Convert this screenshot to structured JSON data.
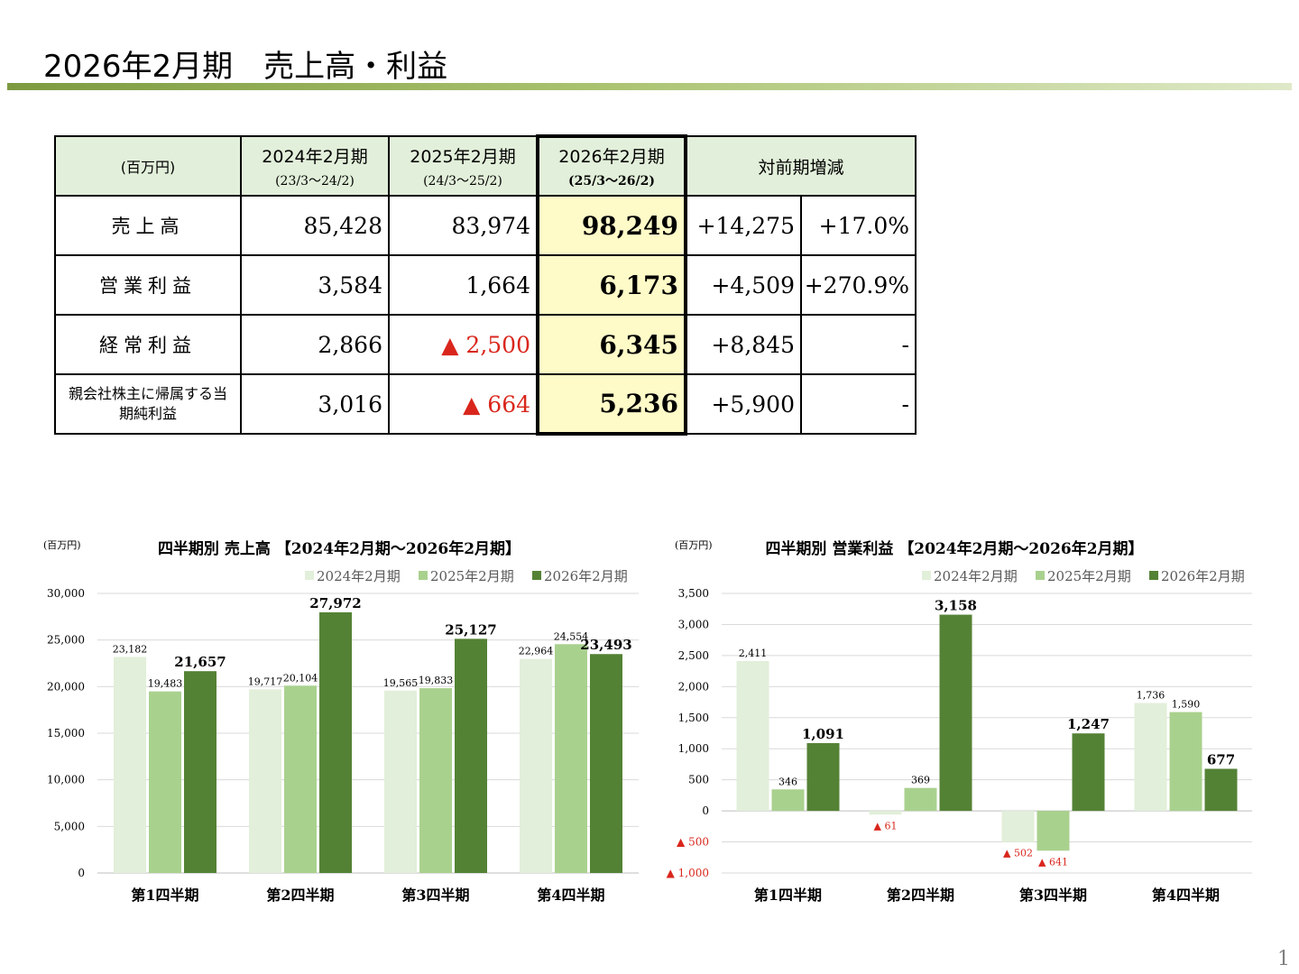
{
  "slide": {
    "title": "2026年2月期　売上高・利益",
    "page_number": "1"
  },
  "summary_table": {
    "unit_label": "(百万円)",
    "columns": [
      {
        "label": "2024年2月期",
        "period": "(23/3～24/2)"
      },
      {
        "label": "2025年2月期",
        "period": "(24/3～25/2)"
      },
      {
        "label": "2026年2月期",
        "period": "(25/3～26/2)"
      }
    ],
    "change_header": "対前期増減",
    "rows": [
      {
        "label": "売上高",
        "v2024": "85,428",
        "v2025": "83,974",
        "v2026": "98,249",
        "diff": "+14,275",
        "pct": "+17.0%"
      },
      {
        "label": "営業利益",
        "v2024": "3,584",
        "v2025": "1,664",
        "v2026": "6,173",
        "diff": "+4,509",
        "pct": "+270.9%"
      },
      {
        "label": "経常利益",
        "v2024": "2,866",
        "v2025": "▲ 2,500",
        "v2026": "6,345",
        "diff": "+8,845",
        "pct": "-"
      },
      {
        "label": "親会社株主に帰属する当期純利益",
        "v2024": "3,016",
        "v2025": "▲ 664",
        "v2026": "5,236",
        "diff": "+5,900",
        "pct": "-"
      }
    ]
  },
  "colors": {
    "s2024": "#e2efda",
    "s2025": "#a9d18e",
    "s2026": "#548235",
    "negative": "#d9261c",
    "header_fill": "#e2efda",
    "highlight_fill": "#fffbc8"
  },
  "chart_data": [
    {
      "type": "bar",
      "title": "四半期別 売上高 【2024年2月期～2026年2月期】",
      "unit": "(百万円)",
      "categories": [
        "第1四半期",
        "第2四半期",
        "第3四半期",
        "第4四半期"
      ],
      "series": [
        {
          "name": "2024年2月期",
          "values": [
            23182,
            19717,
            19565,
            22964
          ],
          "labels": [
            "23,182",
            "19,717",
            "19,565",
            "22,964"
          ]
        },
        {
          "name": "2025年2月期",
          "values": [
            19483,
            20104,
            19833,
            24554
          ],
          "labels": [
            "19,483",
            "20,104",
            "19,833",
            "24,554"
          ]
        },
        {
          "name": "2026年2月期",
          "values": [
            21657,
            27972,
            25127,
            23493
          ],
          "labels": [
            "21,657",
            "27,972",
            "25,127",
            "23,493"
          ]
        }
      ],
      "ylim": [
        0,
        30000
      ],
      "yticks": [
        0,
        5000,
        10000,
        15000,
        20000,
        25000,
        30000
      ],
      "ytick_labels": [
        "0",
        "5,000",
        "10,000",
        "15,000",
        "20,000",
        "25,000",
        "30,000"
      ],
      "grid": true,
      "legend": "top-right"
    },
    {
      "type": "bar",
      "title": "四半期別 営業利益 【2024年2月期～2026年2月期】",
      "unit": "(百万円)",
      "categories": [
        "第1四半期",
        "第2四半期",
        "第3四半期",
        "第4四半期"
      ],
      "series": [
        {
          "name": "2024年2月期",
          "values": [
            2411,
            -61,
            -502,
            1736
          ],
          "labels": [
            "2,411",
            "▲ 61",
            "▲ 502",
            "1,736"
          ]
        },
        {
          "name": "2025年2月期",
          "values": [
            346,
            369,
            -641,
            1590
          ],
          "labels": [
            "346",
            "369",
            "▲ 641",
            "1,590"
          ]
        },
        {
          "name": "2026年2月期",
          "values": [
            1091,
            3158,
            1247,
            677
          ],
          "labels": [
            "1,091",
            "3,158",
            "1,247",
            "677"
          ]
        }
      ],
      "ylim": [
        -1000,
        3500
      ],
      "yticks": [
        -1000,
        -500,
        0,
        500,
        1000,
        1500,
        2000,
        2500,
        3000,
        3500
      ],
      "ytick_labels": [
        "▲ 1,000",
        "▲ 500",
        "0",
        "500",
        "1,000",
        "1,500",
        "2,000",
        "2,500",
        "3,000",
        "3,500"
      ],
      "grid": true,
      "legend": "top-right"
    }
  ]
}
